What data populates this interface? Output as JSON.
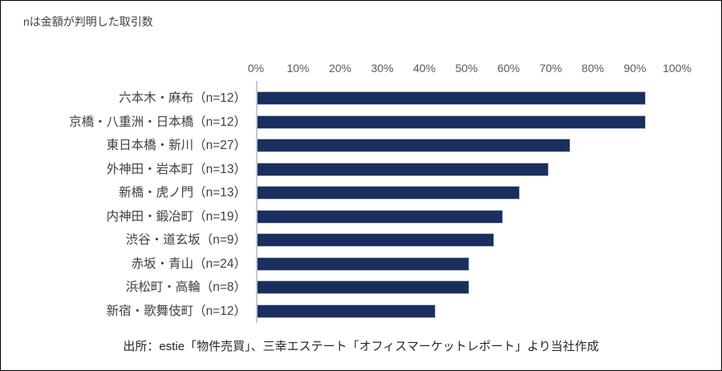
{
  "note": "nは金額が判明した取引数",
  "footer": "出所：estie「物件売買」、三幸エステート「オフィスマーケットレポート」より当社作成",
  "chart_data": {
    "type": "bar",
    "orientation": "horizontal",
    "title": "",
    "xlabel": "",
    "ylabel": "",
    "xlim": [
      0,
      100
    ],
    "axis_ticks": [
      "0%",
      "10%",
      "20%",
      "30%",
      "40%",
      "50%",
      "60%",
      "70%",
      "80%",
      "90%",
      "100%"
    ],
    "categories": [
      "六本木・麻布（n=12）",
      "京橋・八重洲・日本橋（n=12）",
      "東日本橋・新川（n=27）",
      "外神田・岩本町（n=13）",
      "新橋・虎ノ門（n=13）",
      "内神田・鍛冶町（n=19）",
      "渋谷・道玄坂（n=9）",
      "赤坂・青山（n=24）",
      "浜松町・高輪（n=8）",
      "新宿・歌舞伎町（n=12）"
    ],
    "values": [
      92,
      92,
      74,
      69,
      62,
      58,
      56,
      50,
      50,
      42
    ],
    "unit": "%",
    "legend": null,
    "grid": false
  },
  "colors": {
    "bar_fill": "#1b2f5e",
    "bar_border": "#b7c1d4",
    "axis_text": "#595959",
    "category_text": "#404040",
    "note_text": "#404040",
    "footer_text": "#262626",
    "axis_line": "#c9c9c9",
    "frame_border": "#000000",
    "background": "#ffffff"
  }
}
